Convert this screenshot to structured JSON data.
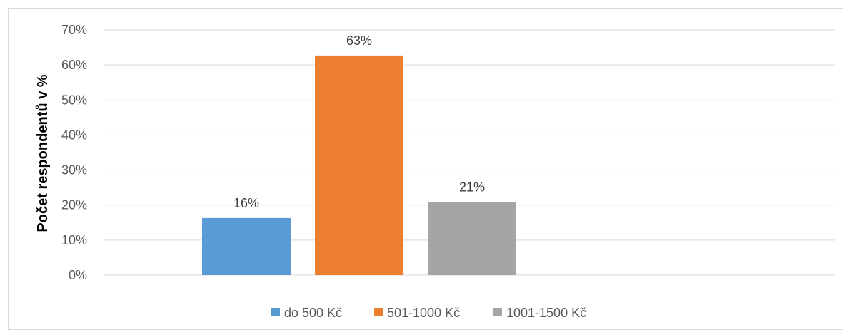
{
  "chart_data": {
    "type": "bar",
    "title": "",
    "xlabel": "",
    "ylabel": "Počet respondentů v %",
    "ylim": [
      0,
      70
    ],
    "yticks": [
      0,
      10,
      20,
      30,
      40,
      50,
      60,
      70
    ],
    "ytick_labels": [
      "0%",
      "10%",
      "20%",
      "30%",
      "40%",
      "50%",
      "60%",
      "70%"
    ],
    "grid": true,
    "legend_position": "bottom",
    "series": [
      {
        "name": "do 500 Kč",
        "value": 16.3,
        "label": "16%",
        "color": "#5b9bd5"
      },
      {
        "name": "501-1000 Kč",
        "value": 62.7,
        "label": "63%",
        "color": "#ed7d31"
      },
      {
        "name": "1001-1500 Kč",
        "value": 20.9,
        "label": "21%",
        "color": "#a5a5a5"
      }
    ]
  }
}
